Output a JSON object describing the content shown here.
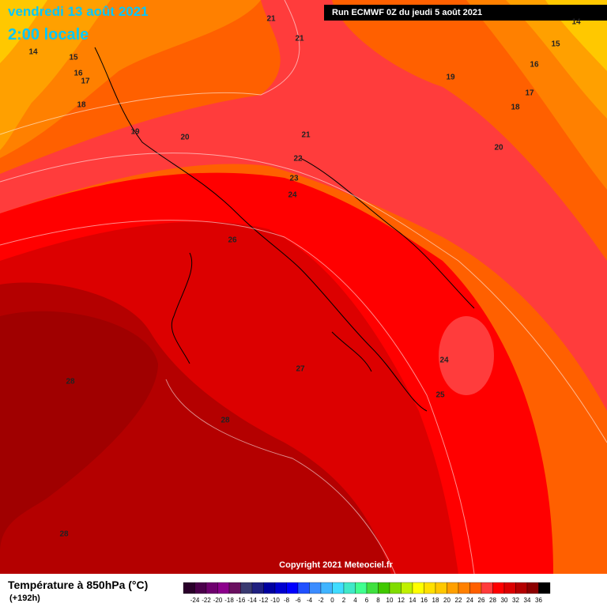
{
  "header": {
    "date": "vendredi 13 août 2021",
    "time": "2:00 locale",
    "run": "Run ECMWF 0Z du jeudi 5 août 2021"
  },
  "copyright": "Copyright 2021 Meteociel.fr",
  "legend": {
    "title": "Température à 850hPa (°C)",
    "subtitle": "(+192h)",
    "labels": [
      -24,
      -22,
      -20,
      -18,
      -16,
      -14,
      -12,
      -10,
      -8,
      -6,
      -4,
      -2,
      0,
      2,
      4,
      6,
      8,
      10,
      12,
      14,
      16,
      18,
      20,
      22,
      24,
      26,
      28,
      30,
      32,
      34,
      36
    ],
    "colors": [
      "#2a002a",
      "#4b004b",
      "#6e006e",
      "#8c008c",
      "#6a1060",
      "#3a3a70",
      "#202080",
      "#0000a0",
      "#0000d0",
      "#0000ff",
      "#2050ff",
      "#3c8cff",
      "#40b4ff",
      "#40dcff",
      "#40e8c8",
      "#40ff90",
      "#40e040",
      "#40c800",
      "#80dc00",
      "#c0f000",
      "#ffff00",
      "#ffe000",
      "#ffc800",
      "#ffa000",
      "#ff8000",
      "#ff6000",
      "#ff3c3c",
      "#ff0000",
      "#dc0000",
      "#b40000",
      "#8c0000",
      "#000000"
    ]
  },
  "contour_labels": [
    21,
    21,
    14,
    15,
    16,
    17,
    18,
    19,
    20,
    21,
    22,
    23,
    24,
    26,
    27,
    28,
    28,
    28,
    24,
    25,
    19,
    20,
    18,
    17,
    16,
    15,
    14
  ]
}
